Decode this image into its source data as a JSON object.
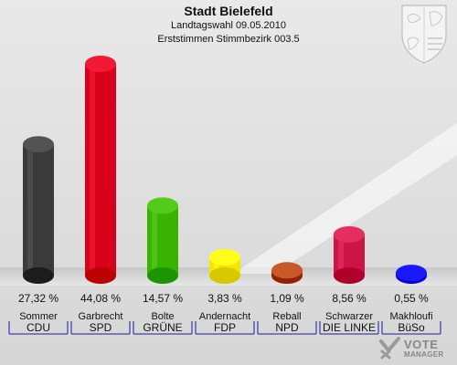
{
  "header": {
    "title": "Stadt Bielefeld",
    "subtitle1": "Landtagswahl 09.05.2010",
    "subtitle2": "Erststimmen Stimmbezirk 003.5"
  },
  "brand": {
    "line1": "VOTE",
    "line2": "MANAGER"
  },
  "chart_data": {
    "type": "bar",
    "title": "Stadt Bielefeld",
    "categories": [
      "CDU",
      "SPD",
      "GRÜNE",
      "FDP",
      "NPD",
      "DIE LINKE",
      "BüSo"
    ],
    "candidates": [
      "Sommer",
      "Garbrecht",
      "Bolte",
      "Andernacht",
      "Reball",
      "Schwarzer",
      "Makhloufi"
    ],
    "values": [
      27.32,
      44.08,
      14.57,
      3.83,
      1.09,
      8.56,
      0.55
    ],
    "value_labels": [
      "27,32 %",
      "44,08 %",
      "14,57 %",
      "3,83 %",
      "1,09 %",
      "8,56 %",
      "0,55 %"
    ],
    "colors": [
      "#3a3a3a",
      "#d9001b",
      "#39b300",
      "#f5e600",
      "#b0400f",
      "#cc1546",
      "#0000ee"
    ],
    "ylim": [
      0,
      44.08
    ],
    "grid": false
  }
}
